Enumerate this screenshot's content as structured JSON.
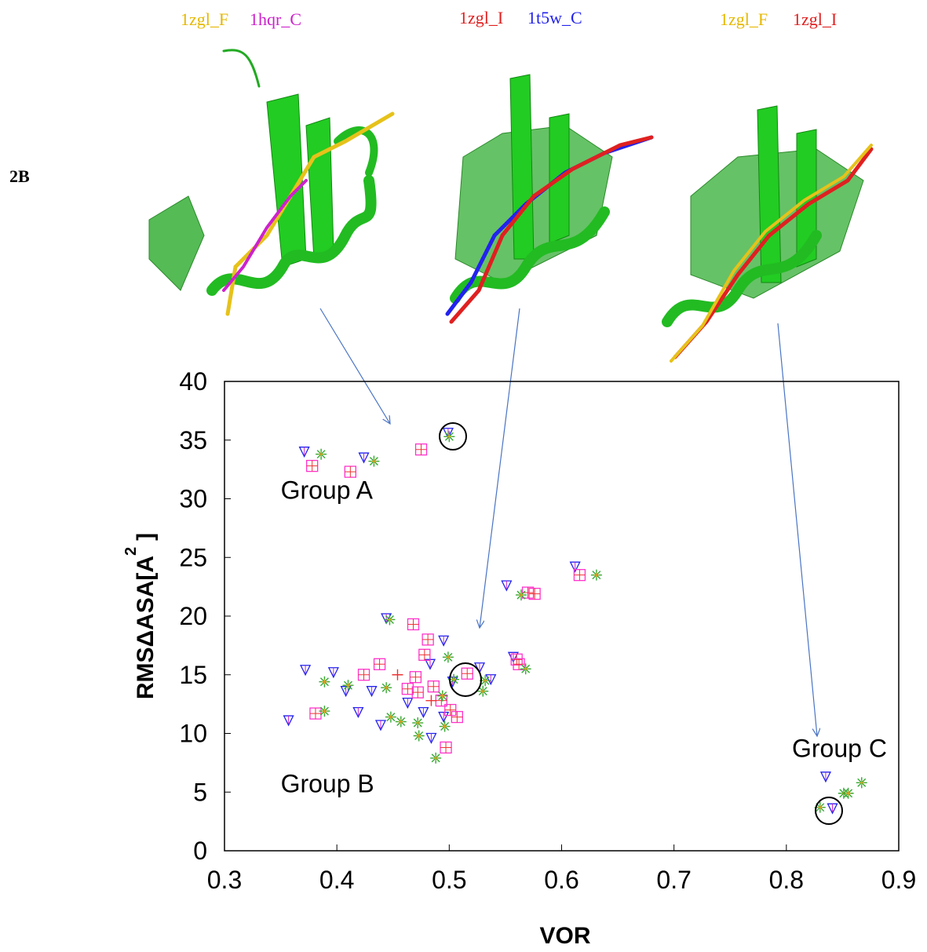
{
  "figure": {
    "panel": "2B",
    "structure_labels": [
      [
        "1zgl_F",
        "1hqr_C"
      ],
      [
        "1zgl_I",
        "1t5w_C"
      ],
      [
        "1zgl_F",
        "1zgl_I"
      ]
    ]
  },
  "chart_data": {
    "type": "scatter",
    "x_label": "VOR",
    "y_label": [
      "RMSΔASA[A",
      "2",
      "]"
    ],
    "annotations": [
      {
        "text": "Group A",
        "x": 0.35,
        "y": 30
      },
      {
        "text": "Group B",
        "x": 0.35,
        "y": 5
      },
      {
        "text": "Group C",
        "x": 0.805,
        "y": 8
      }
    ],
    "xlim": [
      0.3,
      0.9
    ],
    "xticks": [
      0.3,
      0.4,
      0.5,
      0.6,
      0.7,
      0.8,
      0.9
    ],
    "ylim": [
      0,
      40
    ],
    "yticks": [
      0,
      5,
      10,
      15,
      20,
      25,
      30,
      35,
      40
    ],
    "series": [
      {
        "marker": "triangle",
        "color": "#2222ee",
        "x": [
          0.371,
          0.424,
          0.499,
          0.357,
          0.372,
          0.397,
          0.408,
          0.431,
          0.419,
          0.439,
          0.444,
          0.495,
          0.463,
          0.477,
          0.484,
          0.483,
          0.495,
          0.503,
          0.527,
          0.537,
          0.551,
          0.557,
          0.612,
          0.835,
          0.841
        ],
        "values": [
          34.0,
          33.5,
          35.6,
          11.1,
          15.4,
          15.2,
          13.6,
          13.6,
          11.8,
          10.7,
          19.8,
          17.9,
          12.6,
          11.8,
          9.6,
          15.9,
          11.4,
          14.4,
          15.6,
          14.6,
          22.6,
          16.5,
          24.2,
          6.3,
          3.6
        ]
      },
      {
        "marker": "square",
        "color": "#ff33cc",
        "x": [
          0.378,
          0.412,
          0.475,
          0.424,
          0.438,
          0.381,
          0.468,
          0.481,
          0.478,
          0.463,
          0.472,
          0.486,
          0.493,
          0.501,
          0.507,
          0.497,
          0.516,
          0.56,
          0.562,
          0.57,
          0.576,
          0.616,
          0.47
        ],
        "values": [
          32.8,
          32.3,
          34.2,
          15.0,
          15.9,
          11.7,
          19.3,
          18.0,
          16.7,
          13.8,
          13.5,
          14.0,
          12.8,
          12.0,
          11.4,
          8.8,
          15.1,
          16.3,
          15.9,
          22.0,
          21.9,
          23.5,
          14.8
        ]
      },
      {
        "marker": "asterisk",
        "color": "#33aa33",
        "x": [
          0.386,
          0.433,
          0.5,
          0.389,
          0.389,
          0.41,
          0.444,
          0.447,
          0.448,
          0.457,
          0.473,
          0.472,
          0.488,
          0.499,
          0.496,
          0.494,
          0.504,
          0.53,
          0.532,
          0.568,
          0.564,
          0.631,
          0.83,
          0.851,
          0.867,
          0.855
        ],
        "values": [
          33.8,
          33.2,
          35.3,
          14.4,
          11.9,
          14.1,
          13.9,
          19.7,
          11.4,
          11.0,
          9.8,
          10.9,
          7.9,
          16.5,
          10.6,
          13.2,
          14.6,
          13.6,
          14.5,
          15.5,
          21.8,
          23.5,
          3.7,
          4.9,
          5.8,
          4.9
        ]
      },
      {
        "marker": "plus",
        "color": "#ee3333",
        "x": [
          0.454,
          0.484
        ],
        "values": [
          15.0,
          12.8
        ]
      }
    ]
  }
}
